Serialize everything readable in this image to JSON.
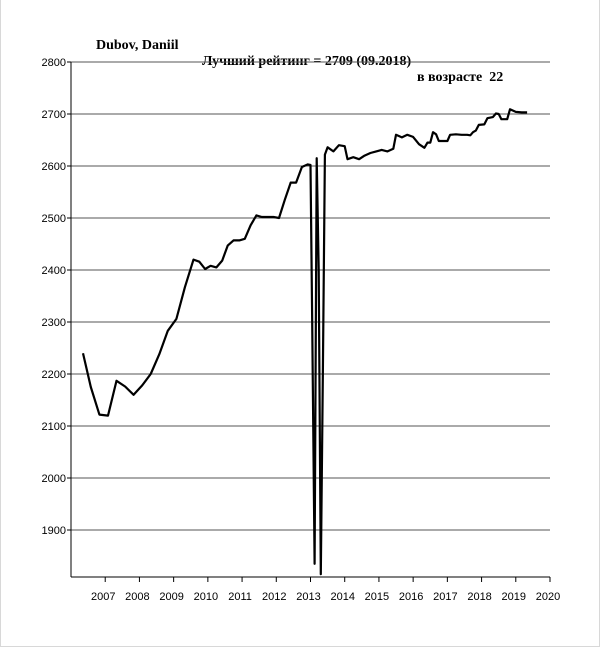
{
  "chart_data": {
    "type": "line",
    "title": {
      "name": "Dubov, Daniil",
      "best": "Лучший рейтинг = 2709 (09.2018)",
      "age": "в возрасте  22"
    },
    "xlabel": "",
    "ylabel": "",
    "xlim": [
      2006.0,
      2020.0
    ],
    "ylim": [
      1810,
      2800
    ],
    "x_ticks": [
      "2007",
      "2008",
      "2009",
      "2010",
      "2011",
      "2012",
      "2013",
      "2014",
      "2015",
      "2016",
      "2017",
      "2018",
      "2019",
      "2020"
    ],
    "y_ticks": [
      "2800",
      "2700",
      "2600",
      "2500",
      "2400",
      "2300",
      "2200",
      "2100",
      "2000",
      "1900"
    ],
    "grid": "horizontal",
    "series": [
      {
        "color": "#000000",
        "points": [
          [
            2006.35,
            2240
          ],
          [
            2006.58,
            2175
          ],
          [
            2006.83,
            2122
          ],
          [
            2007.08,
            2120
          ],
          [
            2007.33,
            2187
          ],
          [
            2007.58,
            2176
          ],
          [
            2007.83,
            2160
          ],
          [
            2008.08,
            2178
          ],
          [
            2008.33,
            2200
          ],
          [
            2008.58,
            2238
          ],
          [
            2008.83,
            2283
          ],
          [
            2009.08,
            2306
          ],
          [
            2009.33,
            2367
          ],
          [
            2009.58,
            2420
          ],
          [
            2009.75,
            2416
          ],
          [
            2009.92,
            2402
          ],
          [
            2010.08,
            2408
          ],
          [
            2010.25,
            2405
          ],
          [
            2010.42,
            2418
          ],
          [
            2010.58,
            2447
          ],
          [
            2010.75,
            2457
          ],
          [
            2010.92,
            2457
          ],
          [
            2011.08,
            2460
          ],
          [
            2011.25,
            2486
          ],
          [
            2011.42,
            2505
          ],
          [
            2011.58,
            2502
          ],
          [
            2011.75,
            2502
          ],
          [
            2011.92,
            2502
          ],
          [
            2012.08,
            2500
          ],
          [
            2012.25,
            2535
          ],
          [
            2012.42,
            2568
          ],
          [
            2012.58,
            2568
          ],
          [
            2012.75,
            2598
          ],
          [
            2012.92,
            2603
          ],
          [
            2013.0,
            2602
          ],
          [
            2013.05,
            2300
          ],
          [
            2013.12,
            1835
          ],
          [
            2013.18,
            2615
          ],
          [
            2013.24,
            2400
          ],
          [
            2013.3,
            1815
          ],
          [
            2013.36,
            2190
          ],
          [
            2013.42,
            2622
          ],
          [
            2013.5,
            2636
          ],
          [
            2013.67,
            2628
          ],
          [
            2013.83,
            2640
          ],
          [
            2014.0,
            2638
          ],
          [
            2014.08,
            2613
          ],
          [
            2014.25,
            2617
          ],
          [
            2014.42,
            2613
          ],
          [
            2014.58,
            2620
          ],
          [
            2014.75,
            2625
          ],
          [
            2014.92,
            2628
          ],
          [
            2015.08,
            2631
          ],
          [
            2015.25,
            2628
          ],
          [
            2015.42,
            2633
          ],
          [
            2015.5,
            2660
          ],
          [
            2015.67,
            2655
          ],
          [
            2015.83,
            2660
          ],
          [
            2016.0,
            2656
          ],
          [
            2016.17,
            2642
          ],
          [
            2016.33,
            2635
          ],
          [
            2016.42,
            2645
          ],
          [
            2016.5,
            2645
          ],
          [
            2016.58,
            2665
          ],
          [
            2016.67,
            2661
          ],
          [
            2016.75,
            2648
          ],
          [
            2016.92,
            2648
          ],
          [
            2017.0,
            2648
          ],
          [
            2017.08,
            2660
          ],
          [
            2017.25,
            2661
          ],
          [
            2017.42,
            2660
          ],
          [
            2017.58,
            2660
          ],
          [
            2017.67,
            2659
          ],
          [
            2017.75,
            2665
          ],
          [
            2017.83,
            2668
          ],
          [
            2017.92,
            2679
          ],
          [
            2018.08,
            2680
          ],
          [
            2018.17,
            2692
          ],
          [
            2018.33,
            2694
          ],
          [
            2018.42,
            2701
          ],
          [
            2018.5,
            2700
          ],
          [
            2018.58,
            2690
          ],
          [
            2018.75,
            2690
          ],
          [
            2018.83,
            2709
          ],
          [
            2019.0,
            2704
          ],
          [
            2019.17,
            2703
          ],
          [
            2019.33,
            2703
          ]
        ]
      }
    ]
  }
}
